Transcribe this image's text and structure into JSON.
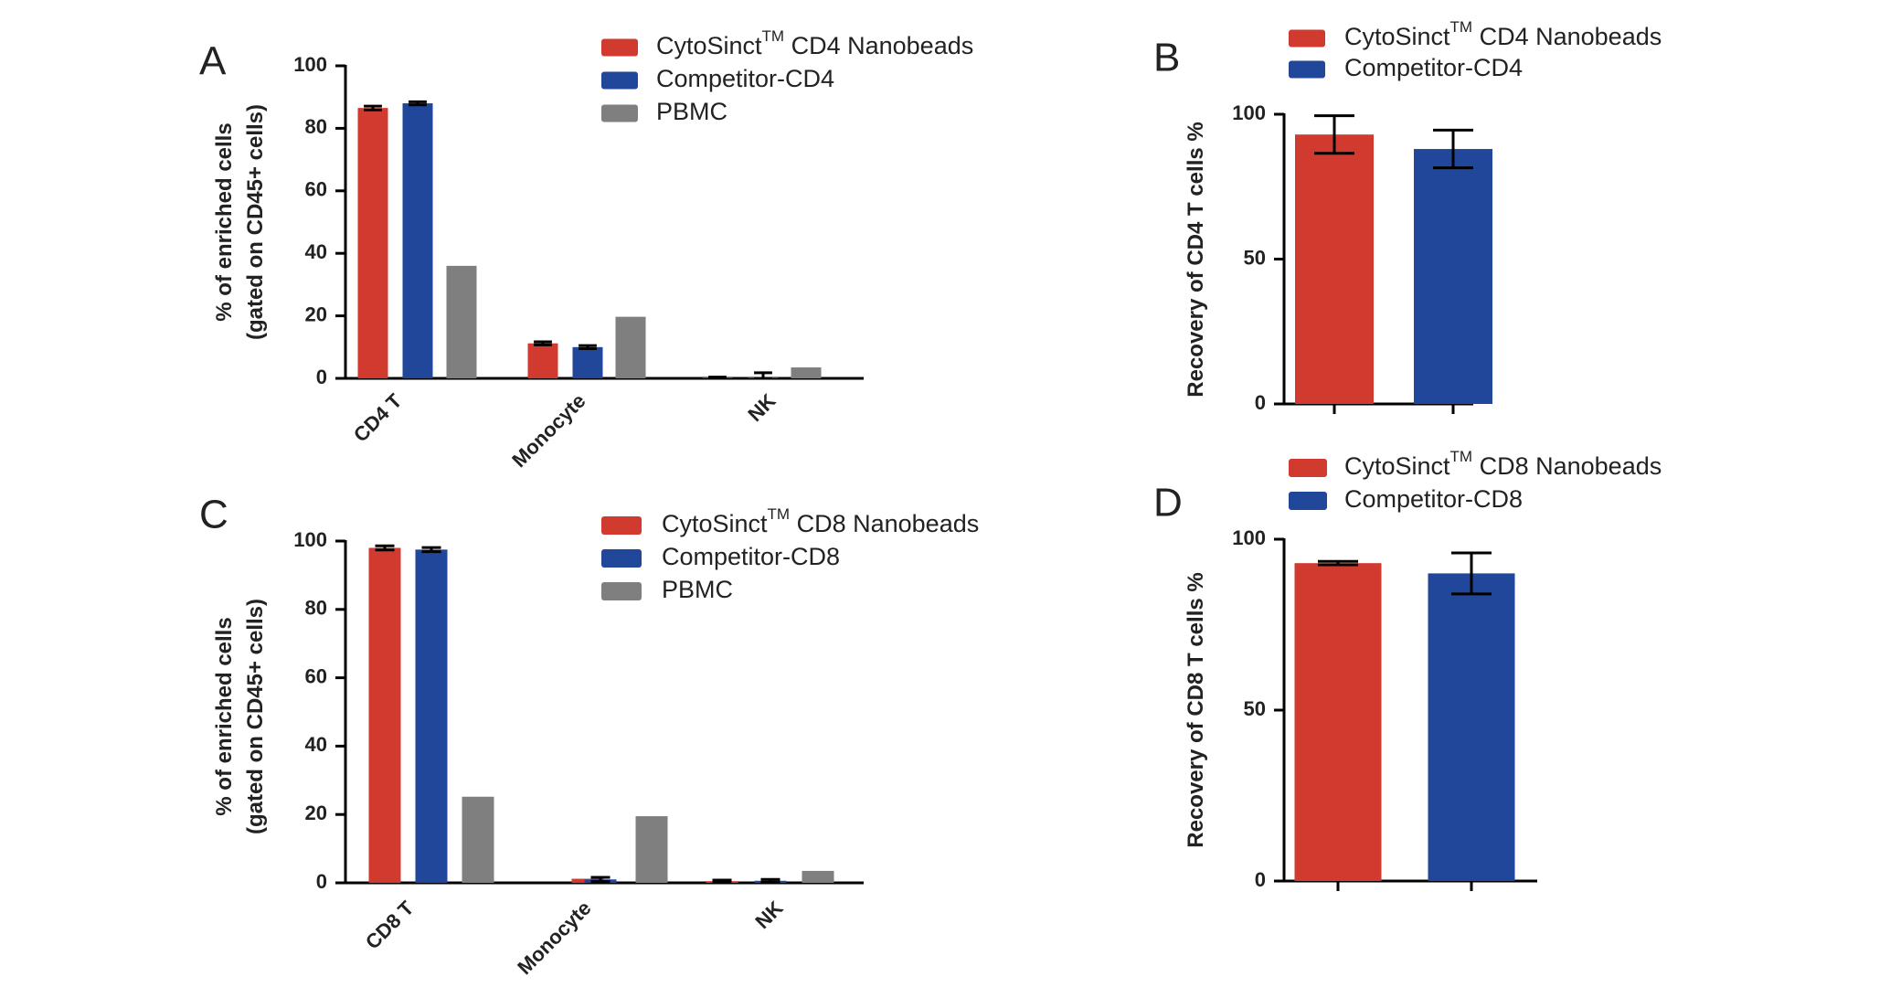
{
  "colors": {
    "red": "#d13a2f",
    "blue": "#21479a",
    "gray": "#7f7f7f",
    "axis": "#000000"
  },
  "chart_data": [
    {
      "panel": "A",
      "type": "bar",
      "categories": [
        "CD4 T",
        "Monocyte",
        "NK"
      ],
      "ylabel_line1": "% of enriched cells",
      "ylabel_line2": "(gated on CD45+ cells)",
      "ylim": [
        0,
        100
      ],
      "yticks": [
        "0",
        "20",
        "40",
        "60",
        "80",
        "100"
      ],
      "legend": [
        {
          "text": "CytoSinct",
          "sup": "TM",
          "rest": " CD4 Nanobeads",
          "color": "red"
        },
        {
          "text": "Competitor-CD4",
          "sup": "",
          "rest": "",
          "color": "blue"
        },
        {
          "text": "PBMC",
          "sup": "",
          "rest": "",
          "color": "gray"
        }
      ],
      "series": [
        {
          "name": "CytoSinct CD4 Nanobeads",
          "color": "red",
          "values": [
            86.5,
            11.2,
            0.2
          ],
          "errors": [
            0.6,
            0.5,
            0.2
          ]
        },
        {
          "name": "Competitor-CD4",
          "color": "blue",
          "values": [
            88,
            10,
            0.3
          ],
          "errors": [
            0.5,
            0.5,
            1.5
          ]
        },
        {
          "name": "PBMC",
          "color": "gray",
          "values": [
            36,
            19.7,
            3.5
          ],
          "errors": [
            0,
            0,
            0
          ]
        }
      ]
    },
    {
      "panel": "B",
      "type": "bar",
      "categories": [
        "",
        ""
      ],
      "ylabel_line1": "Recovery of CD4 T cells %",
      "ylabel_line2": "",
      "ylim": [
        0,
        100
      ],
      "yticks": [
        "0",
        "50",
        "100"
      ],
      "legend": [
        {
          "text": "CytoSinct",
          "sup": "TM",
          "rest": " CD4 Nanobeads",
          "color": "red"
        },
        {
          "text": "Competitor-CD4",
          "sup": "",
          "rest": "",
          "color": "blue"
        }
      ],
      "series": [
        {
          "name": "CytoSinct CD4 Nanobeads",
          "color": "red",
          "values": [
            93,
            null
          ],
          "errors": [
            6.5,
            0
          ]
        },
        {
          "name": "Competitor-CD4",
          "color": "blue",
          "values": [
            null,
            88
          ],
          "errors": [
            0,
            6.5
          ]
        }
      ]
    },
    {
      "panel": "C",
      "type": "bar",
      "categories": [
        "CD8 T",
        "Monocyte",
        "NK"
      ],
      "ylabel_line1": "% of enriched cells",
      "ylabel_line2": "(gated on CD45+ cells)",
      "ylim": [
        0,
        100
      ],
      "yticks": [
        "0",
        "20",
        "40",
        "60",
        "80",
        "100"
      ],
      "legend": [
        {
          "text": "CytoSinct",
          "sup": "TM",
          "rest": " CD8 Nanobeads",
          "color": "red"
        },
        {
          "text": "Competitor-CD8",
          "sup": "",
          "rest": "",
          "color": "blue"
        },
        {
          "text": "PBMC",
          "sup": "",
          "rest": "",
          "color": "gray"
        }
      ],
      "series": [
        {
          "name": "CytoSinct CD8 Nanobeads",
          "color": "red",
          "values": [
            98,
            1.2,
            0.5
          ],
          "errors": [
            0.6,
            0,
            0.3
          ]
        },
        {
          "name": "Competitor-CD8",
          "color": "blue",
          "values": [
            97.5,
            1,
            0.6
          ],
          "errors": [
            0.6,
            0.6,
            0.4
          ]
        },
        {
          "name": "PBMC",
          "color": "gray",
          "values": [
            25.2,
            19.5,
            3.5
          ],
          "errors": [
            0,
            0,
            0
          ]
        }
      ]
    },
    {
      "panel": "D",
      "type": "bar",
      "categories": [
        "",
        ""
      ],
      "ylabel_line1": "Recovery of CD8 T cells %",
      "ylabel_line2": "",
      "ylim": [
        0,
        100
      ],
      "yticks": [
        "0",
        "50",
        "100"
      ],
      "legend": [
        {
          "text": "CytoSinct",
          "sup": "TM",
          "rest": " CD8 Nanobeads",
          "color": "red"
        },
        {
          "text": "Competitor-CD8",
          "sup": "",
          "rest": "",
          "color": "blue"
        }
      ],
      "series": [
        {
          "name": "CytoSinct CD8 Nanobeads",
          "color": "red",
          "values": [
            93,
            null
          ],
          "errors": [
            0.5,
            0
          ]
        },
        {
          "name": "Competitor-CD8",
          "color": "blue",
          "values": [
            null,
            90
          ],
          "errors": [
            0,
            6
          ]
        }
      ]
    }
  ]
}
